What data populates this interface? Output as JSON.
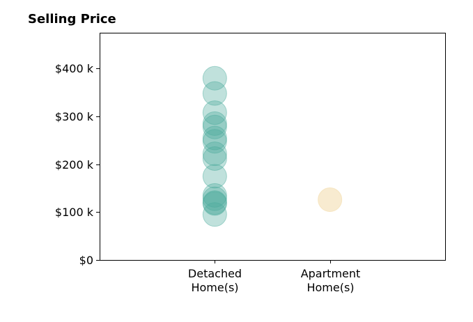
{
  "chart_data": {
    "type": "scatter",
    "title": "Selling Price",
    "xlabel": "",
    "ylabel": "",
    "categories": [
      "Detached Home(s)",
      "Apartment Home(s)"
    ],
    "category_labels": [
      [
        "Detached",
        "Home(s)"
      ],
      [
        "Apartment",
        "Home(s)"
      ]
    ],
    "y_ticks": [
      0,
      100000,
      200000,
      300000,
      400000
    ],
    "y_tick_labels": [
      "$0",
      "$100 k",
      "$200 k",
      "$300 k",
      "$400 k"
    ],
    "ylim": [
      0,
      475000
    ],
    "xlim": [
      -1,
      2
    ],
    "grid": false,
    "legend": "none",
    "series": [
      {
        "category": "Detached Home(s)",
        "color": "#4aaa9c",
        "opacity": 0.35,
        "values": [
          380000,
          348000,
          308000,
          285000,
          278000,
          255000,
          248000,
          222000,
          212000,
          175000,
          135000,
          128000,
          120000,
          118000,
          95000
        ]
      },
      {
        "category": "Apartment Home(s)",
        "color": "#f3deb1",
        "opacity": 0.6,
        "values": [
          126000
        ]
      }
    ]
  }
}
